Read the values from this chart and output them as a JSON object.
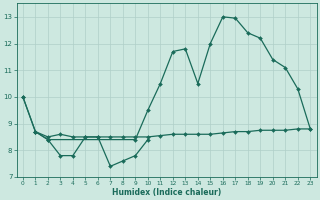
{
  "line_color": "#1a6b5a",
  "bg_color": "#cde8e0",
  "grid_color": "#b0cfc8",
  "xlabel": "Humidex (Indice chaleur)",
  "xlim": [
    -0.5,
    23.5
  ],
  "ylim": [
    7.0,
    13.5
  ],
  "yticks": [
    7,
    8,
    9,
    10,
    11,
    12,
    13
  ],
  "xticks": [
    0,
    1,
    2,
    3,
    4,
    5,
    6,
    7,
    8,
    9,
    10,
    11,
    12,
    13,
    14,
    15,
    16,
    17,
    18,
    19,
    20,
    21,
    22,
    23
  ],
  "lineA_x": [
    0,
    1,
    2,
    3,
    4,
    5,
    6,
    7,
    8,
    9,
    10,
    11,
    12,
    13,
    14,
    15,
    16,
    17,
    18,
    19,
    20,
    21,
    22,
    23
  ],
  "lineA_y": [
    10.0,
    8.7,
    8.5,
    8.6,
    8.5,
    8.5,
    8.5,
    8.5,
    8.5,
    8.5,
    8.5,
    8.55,
    8.6,
    8.6,
    8.6,
    8.6,
    8.65,
    8.7,
    8.7,
    8.75,
    8.75,
    8.75,
    8.8,
    8.8
  ],
  "lineB_x": [
    1,
    2,
    3,
    4,
    5,
    6,
    7,
    8,
    9,
    10
  ],
  "lineB_y": [
    8.7,
    8.4,
    7.8,
    7.8,
    8.5,
    8.5,
    7.4,
    7.6,
    7.8,
    8.4
  ],
  "lineC_x": [
    0,
    1,
    2,
    9,
    10,
    11,
    12,
    13,
    14,
    15,
    16,
    17,
    18,
    19,
    20,
    21,
    22,
    23
  ],
  "lineC_y": [
    10.0,
    8.7,
    8.4,
    8.4,
    9.5,
    10.5,
    11.7,
    11.8,
    10.5,
    12.0,
    13.0,
    12.95,
    12.4,
    12.2,
    11.4,
    11.1,
    10.3,
    8.8
  ],
  "lw": 0.9,
  "ms": 2.0
}
